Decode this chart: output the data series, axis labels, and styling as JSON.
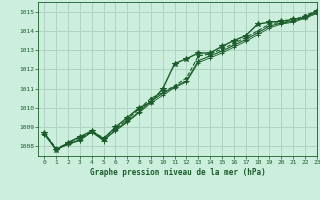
{
  "bg_color": "#cceedd",
  "grid_color": "#b0d4c4",
  "line_color": "#1a5c2a",
  "title": "Graphe pression niveau de la mer (hPa)",
  "title_color": "#1a5c2a",
  "xlim": [
    -0.5,
    23
  ],
  "ylim": [
    1007.5,
    1015.5
  ],
  "yticks": [
    1008,
    1009,
    1010,
    1011,
    1012,
    1013,
    1014,
    1015
  ],
  "xticks": [
    0,
    1,
    2,
    3,
    4,
    5,
    6,
    7,
    8,
    9,
    10,
    11,
    12,
    13,
    14,
    15,
    16,
    17,
    18,
    19,
    20,
    21,
    22,
    23
  ],
  "series": [
    {
      "y": [
        1008.7,
        1007.8,
        1008.2,
        1008.5,
        1008.8,
        1008.4,
        1009.0,
        1009.5,
        1010.0,
        1010.3,
        1011.0,
        1012.3,
        1012.55,
        1012.85,
        1012.85,
        1013.2,
        1013.5,
        1013.75,
        1014.35,
        1014.45,
        1014.5,
        1014.6,
        1014.7,
        1015.05
      ],
      "linestyle": "-",
      "marker": "*",
      "lw": 1.0,
      "ms": 4
    },
    {
      "y": [
        1008.7,
        1007.9,
        1008.15,
        1008.45,
        1008.75,
        1008.45,
        1008.9,
        1009.4,
        1009.95,
        1010.5,
        1010.8,
        1011.15,
        1011.55,
        1012.7,
        1012.8,
        1013.05,
        1013.35,
        1013.65,
        1014.0,
        1014.35,
        1014.45,
        1014.55,
        1014.8,
        1015.05
      ],
      "linestyle": "--",
      "marker": ".",
      "lw": 0.8,
      "ms": 3
    },
    {
      "y": [
        1008.65,
        1007.85,
        1008.1,
        1008.35,
        1008.75,
        1008.3,
        1008.85,
        1009.3,
        1009.8,
        1010.35,
        1010.75,
        1011.1,
        1011.4,
        1012.45,
        1012.7,
        1012.95,
        1013.25,
        1013.55,
        1013.9,
        1014.25,
        1014.4,
        1014.5,
        1014.7,
        1014.95
      ],
      "linestyle": "-",
      "marker": "+",
      "lw": 0.8,
      "ms": 4
    },
    {
      "y": [
        1008.6,
        1007.85,
        1008.1,
        1008.3,
        1008.75,
        1008.35,
        1008.8,
        1009.25,
        1009.75,
        1010.25,
        1010.65,
        1011.05,
        1011.35,
        1012.35,
        1012.6,
        1012.85,
        1013.15,
        1013.45,
        1013.8,
        1014.15,
        1014.35,
        1014.45,
        1014.65,
        1014.9
      ],
      "linestyle": "-",
      "marker": "+",
      "lw": 0.6,
      "ms": 3
    }
  ]
}
